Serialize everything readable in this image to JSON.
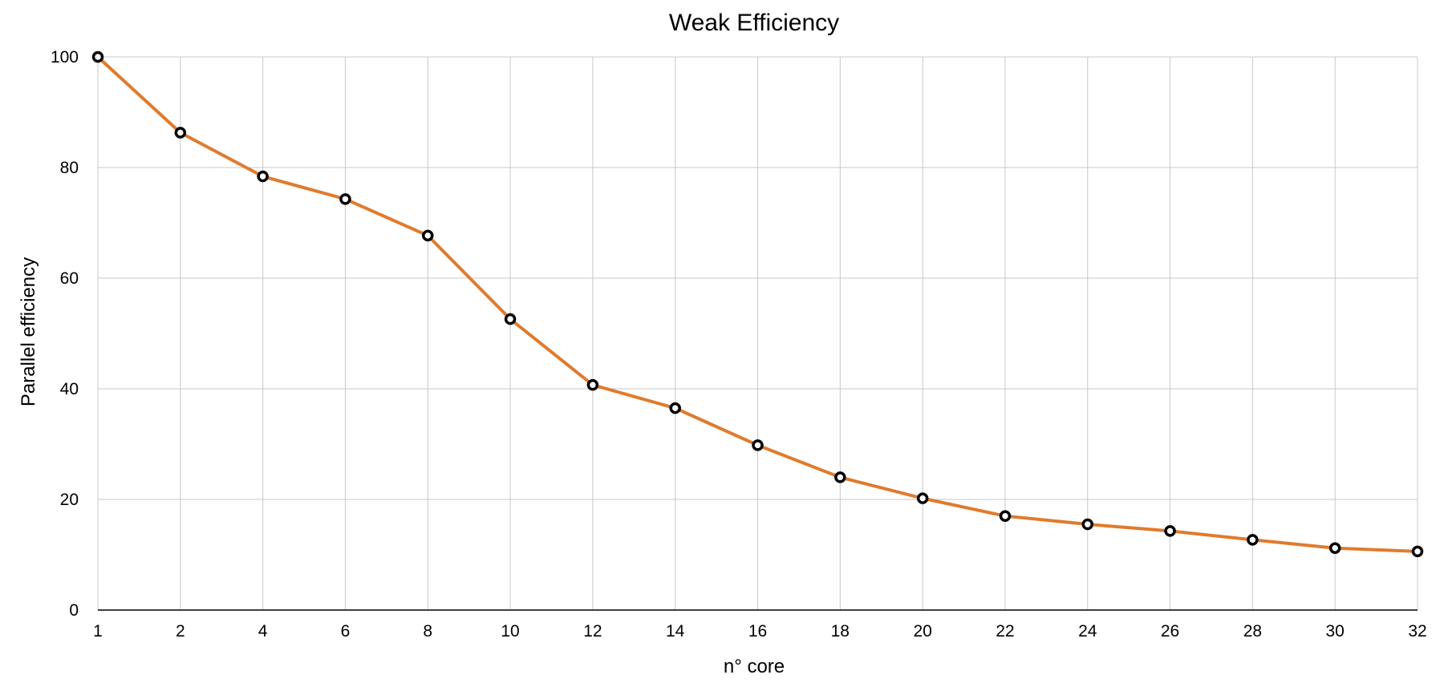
{
  "chart_data": {
    "type": "line",
    "title": "Weak Efficiency",
    "xlabel": "n° core",
    "ylabel": "Parallel efficiency",
    "categories": [
      "1",
      "2",
      "4",
      "6",
      "8",
      "10",
      "12",
      "14",
      "16",
      "18",
      "20",
      "22",
      "24",
      "26",
      "28",
      "30",
      "32"
    ],
    "series": [
      {
        "color": "#e07b2d",
        "marker_color": "#000000",
        "values": [
          100,
          86.3,
          78.4,
          74.3,
          67.7,
          52.6,
          40.7,
          36.5,
          29.8,
          24.0,
          20.2,
          17.0,
          15.5,
          14.3,
          12.7,
          11.2,
          10.6
        ]
      }
    ],
    "ylim": [
      0,
      100
    ],
    "yticks": [
      0,
      20,
      40,
      60,
      80,
      100
    ],
    "grid": true,
    "legend": "none"
  }
}
